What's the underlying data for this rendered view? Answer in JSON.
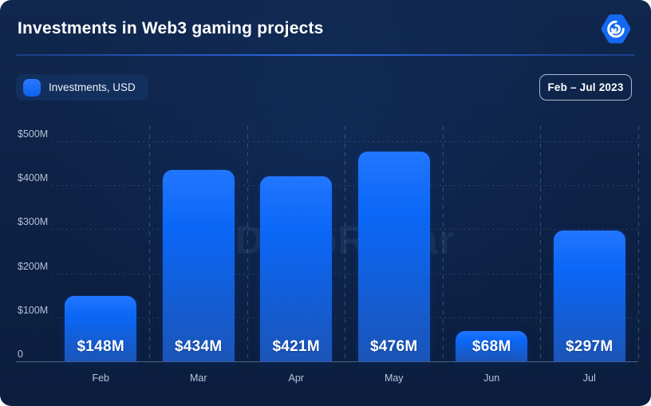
{
  "header": {
    "title": "Investments in Web3 gaming projects",
    "logo_icon": "radar-hexagon-icon",
    "logo_color": "#1468f2"
  },
  "controls": {
    "legend_label": "Investments, USD",
    "period_label": "Feb – Jul 2023"
  },
  "watermark_text": "DappRadar",
  "colors": {
    "background": "#0d2245",
    "bar_top": "#2176ff",
    "bar_bottom": "#1b55b8",
    "accent_divider": "#2d66e0",
    "axis_text": "#b3c0d6",
    "value_text": "#ffffff"
  },
  "chart_data": {
    "type": "bar",
    "title": "Investments in Web3 gaming projects",
    "series_name": "Investments, USD",
    "categories": [
      "Feb",
      "Mar",
      "Apr",
      "May",
      "Jun",
      "Jul"
    ],
    "values": [
      148,
      434,
      421,
      476,
      68,
      297
    ],
    "value_labels": [
      "$148M",
      "$434M",
      "$421M",
      "$476M",
      "$68M",
      "$297M"
    ],
    "xlabel": "",
    "ylabel": "",
    "ylim": [
      0,
      500
    ],
    "yticks": [
      0,
      100,
      200,
      300,
      400,
      500
    ],
    "ytick_labels": [
      "0",
      "$100M",
      "$200M",
      "$300M",
      "$400M",
      "$500M"
    ],
    "grid": "horizontal dotted value lines + vertical dashed month separators",
    "legend_position": "top-left",
    "period": "Feb – Jul 2023",
    "unit": "USD millions"
  }
}
